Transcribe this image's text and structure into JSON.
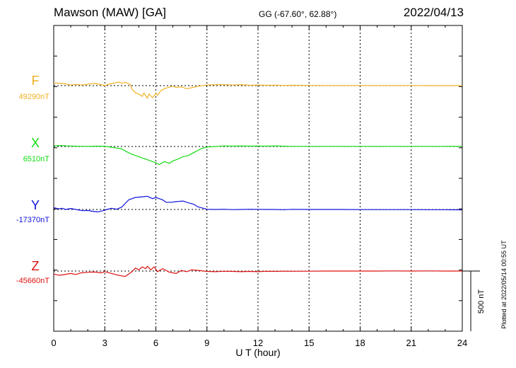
{
  "header": {
    "station": "Mawson (MAW)  [GA]",
    "coords": "GG (-67.60°,  62.88°)",
    "date": "2022/04/13"
  },
  "footer": {
    "plotted": "Plotted at 2022/05/14 00:55 UT",
    "scale_label": "500 nT"
  },
  "colors": {
    "F": "#f0b020",
    "X": "#10dd10",
    "Y": "#1010dd",
    "Z": "#dd1010"
  },
  "chart_data": {
    "type": "line",
    "xlabel": "U T (hour)",
    "xlim": [
      0,
      24
    ],
    "xticks": [
      "0",
      "3",
      "6",
      "9",
      "12",
      "15",
      "18",
      "21",
      "24"
    ],
    "scale_nT": 500,
    "series": [
      {
        "name": "F",
        "baseline_label": "49290nT",
        "color": "#f0b020",
        "points": [
          [
            0,
            -25
          ],
          [
            0.3,
            -20
          ],
          [
            0.7,
            -15
          ],
          [
            1.0,
            -5
          ],
          [
            1.3,
            -10
          ],
          [
            1.7,
            -5
          ],
          [
            2.0,
            -12
          ],
          [
            2.4,
            -18
          ],
          [
            2.8,
            -8
          ],
          [
            3.0,
            0
          ],
          [
            3.2,
            -12
          ],
          [
            3.5,
            -20
          ],
          [
            3.8,
            -30
          ],
          [
            4.0,
            -20
          ],
          [
            4.2,
            -28
          ],
          [
            4.5,
            -10
          ],
          [
            4.6,
            30
          ],
          [
            4.8,
            60
          ],
          [
            5.0,
            70
          ],
          [
            5.2,
            90
          ],
          [
            5.3,
            60
          ],
          [
            5.5,
            105
          ],
          [
            5.6,
            70
          ],
          [
            5.8,
            100
          ],
          [
            6.0,
            65
          ],
          [
            6.1,
            80
          ],
          [
            6.3,
            40
          ],
          [
            6.6,
            20
          ],
          [
            7.0,
            5
          ],
          [
            7.2,
            15
          ],
          [
            7.5,
            10
          ],
          [
            7.8,
            25
          ],
          [
            8.2,
            15
          ],
          [
            8.5,
            5
          ],
          [
            9.0,
            -5
          ],
          [
            9.5,
            -8
          ],
          [
            10.0,
            -8
          ],
          [
            10.5,
            -5
          ],
          [
            11.0,
            -8
          ],
          [
            11.5,
            -3
          ],
          [
            12.0,
            -5
          ],
          [
            12.5,
            -3
          ],
          [
            13.0,
            -4
          ],
          [
            13.5,
            -2
          ],
          [
            14.0,
            -3
          ],
          [
            15.0,
            -2
          ],
          [
            16.0,
            -1
          ],
          [
            17.0,
            -1
          ],
          [
            18.0,
            -1
          ],
          [
            19.0,
            -1
          ],
          [
            20.0,
            -1
          ],
          [
            21.0,
            -1
          ],
          [
            22.0,
            0
          ],
          [
            23.0,
            0
          ],
          [
            24.0,
            0
          ]
        ]
      },
      {
        "name": "X",
        "baseline_label": "6510nT",
        "color": "#10dd10",
        "points": [
          [
            0,
            -5
          ],
          [
            0.4,
            -8
          ],
          [
            0.8,
            -5
          ],
          [
            1.2,
            -3
          ],
          [
            1.6,
            -2
          ],
          [
            2.0,
            -1
          ],
          [
            2.5,
            -3
          ],
          [
            3.0,
            -2
          ],
          [
            3.5,
            8
          ],
          [
            4.0,
            20
          ],
          [
            4.3,
            45
          ],
          [
            4.6,
            65
          ],
          [
            4.9,
            80
          ],
          [
            5.2,
            95
          ],
          [
            5.5,
            110
          ],
          [
            5.8,
            125
          ],
          [
            6.0,
            135
          ],
          [
            6.2,
            150
          ],
          [
            6.5,
            125
          ],
          [
            6.8,
            140
          ],
          [
            7.0,
            120
          ],
          [
            7.3,
            105
          ],
          [
            7.6,
            85
          ],
          [
            7.9,
            75
          ],
          [
            8.3,
            45
          ],
          [
            8.7,
            15
          ],
          [
            9.0,
            5
          ],
          [
            9.5,
            0
          ],
          [
            10.0,
            -5
          ],
          [
            10.5,
            -3
          ],
          [
            11.0,
            -5
          ],
          [
            11.5,
            -3
          ],
          [
            12.0,
            -4
          ],
          [
            12.5,
            -3
          ],
          [
            13.0,
            -5
          ],
          [
            13.5,
            -3
          ],
          [
            14.0,
            -1
          ],
          [
            15.0,
            -1
          ],
          [
            16.0,
            -1
          ],
          [
            17.0,
            -1
          ],
          [
            18.0,
            -1
          ],
          [
            19.0,
            -1
          ],
          [
            20.0,
            -1
          ],
          [
            21.0,
            -1
          ],
          [
            22.0,
            -1
          ],
          [
            23.0,
            -1
          ],
          [
            24.0,
            -2
          ]
        ]
      },
      {
        "name": "Y",
        "baseline_label": "-17370nT",
        "color": "#1010dd",
        "points": [
          [
            0,
            -15
          ],
          [
            0.3,
            -5
          ],
          [
            0.5,
            -10
          ],
          [
            0.7,
            0
          ],
          [
            1.0,
            -8
          ],
          [
            1.3,
            0
          ],
          [
            1.7,
            10
          ],
          [
            2.0,
            8
          ],
          [
            2.3,
            15
          ],
          [
            2.6,
            20
          ],
          [
            2.9,
            10
          ],
          [
            3.1,
            0
          ],
          [
            3.4,
            -10
          ],
          [
            3.7,
            -2
          ],
          [
            4.0,
            -20
          ],
          [
            4.2,
            -50
          ],
          [
            4.4,
            -80
          ],
          [
            4.6,
            -90
          ],
          [
            4.8,
            -100
          ],
          [
            5.2,
            -105
          ],
          [
            5.5,
            -110
          ],
          [
            5.8,
            -90
          ],
          [
            6.0,
            -100
          ],
          [
            6.2,
            -90
          ],
          [
            6.4,
            -80
          ],
          [
            6.6,
            -60
          ],
          [
            6.9,
            -60
          ],
          [
            7.2,
            -65
          ],
          [
            7.6,
            -70
          ],
          [
            7.9,
            -55
          ],
          [
            8.2,
            -45
          ],
          [
            8.5,
            -20
          ],
          [
            8.8,
            -10
          ],
          [
            9.0,
            -2
          ],
          [
            9.5,
            0
          ],
          [
            10.0,
            -2
          ],
          [
            10.5,
            1
          ],
          [
            11.0,
            0
          ],
          [
            11.5,
            -2
          ],
          [
            12.0,
            -1
          ],
          [
            12.5,
            0
          ],
          [
            13.0,
            0
          ],
          [
            13.5,
            2
          ],
          [
            14.0,
            -1
          ],
          [
            15.0,
            0
          ],
          [
            16.0,
            0
          ],
          [
            17.0,
            0
          ],
          [
            18.0,
            1
          ],
          [
            19.0,
            1
          ],
          [
            20.0,
            1
          ],
          [
            21.0,
            1
          ],
          [
            22.0,
            2
          ],
          [
            23.0,
            2
          ],
          [
            24.0,
            3
          ]
        ]
      },
      {
        "name": "Z",
        "baseline_label": "-45660nT",
        "color": "#dd1010",
        "points": [
          [
            0,
            25
          ],
          [
            0.3,
            35
          ],
          [
            0.6,
            30
          ],
          [
            1.0,
            20
          ],
          [
            1.3,
            28
          ],
          [
            1.6,
            15
          ],
          [
            2.0,
            10
          ],
          [
            2.4,
            8
          ],
          [
            2.8,
            15
          ],
          [
            3.0,
            5
          ],
          [
            3.4,
            20
          ],
          [
            3.8,
            35
          ],
          [
            4.0,
            40
          ],
          [
            4.2,
            45
          ],
          [
            4.4,
            25
          ],
          [
            4.6,
            5
          ],
          [
            4.8,
            -25
          ],
          [
            5.0,
            -10
          ],
          [
            5.2,
            -35
          ],
          [
            5.4,
            -20
          ],
          [
            5.5,
            -40
          ],
          [
            5.7,
            -10
          ],
          [
            5.9,
            -35
          ],
          [
            6.1,
            5
          ],
          [
            6.4,
            -20
          ],
          [
            6.8,
            10
          ],
          [
            7.2,
            20
          ],
          [
            7.5,
            -5
          ],
          [
            7.8,
            5
          ],
          [
            8.1,
            -10
          ],
          [
            8.5,
            -5
          ],
          [
            9.0,
            3
          ],
          [
            9.5,
            5
          ],
          [
            10.0,
            2
          ],
          [
            10.5,
            3
          ],
          [
            11.0,
            5
          ],
          [
            11.5,
            3
          ],
          [
            12.0,
            5
          ],
          [
            12.5,
            2
          ],
          [
            13.0,
            3
          ],
          [
            13.5,
            1
          ],
          [
            14.0,
            2
          ],
          [
            15.0,
            1
          ],
          [
            16.0,
            0
          ],
          [
            17.0,
            0
          ],
          [
            18.0,
            0
          ],
          [
            19.0,
            0
          ],
          [
            20.0,
            -1
          ],
          [
            21.0,
            0
          ],
          [
            22.0,
            -1
          ],
          [
            23.0,
            0
          ],
          [
            24.0,
            0
          ]
        ]
      }
    ]
  }
}
